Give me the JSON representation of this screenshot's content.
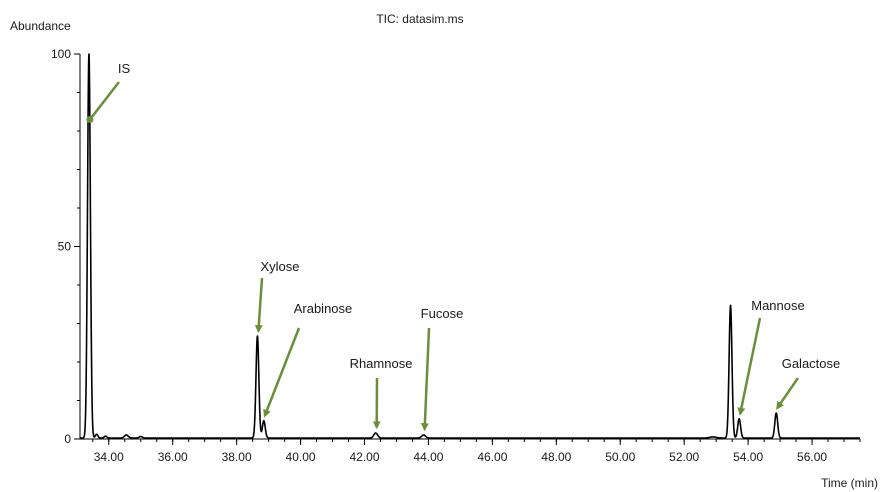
{
  "chart_data": {
    "type": "line",
    "title": "TIC: datasim.ms",
    "ylabel": "Abundance",
    "xlabel": "Time (min)",
    "xlim": [
      33.1,
      57.5
    ],
    "ylim": [
      0,
      100
    ],
    "xticks": [
      34.0,
      36.0,
      38.0,
      40.0,
      42.0,
      44.0,
      46.0,
      48.0,
      50.0,
      52.0,
      54.0,
      56.0
    ],
    "xtick_labels": [
      "34.00",
      "36.00",
      "38.00",
      "40.00",
      "42.00",
      "44.00",
      "46.00",
      "48.00",
      "50.00",
      "52.00",
      "54.00",
      "56.00"
    ],
    "yticks": [
      0,
      50,
      100
    ],
    "ytick_labels": [
      "0",
      "50",
      "100"
    ],
    "grid": false,
    "line_color": "#000000",
    "annotation_color": "#6a8e3a",
    "baseline": 0.25,
    "peaks": [
      {
        "x": 33.38,
        "height": 100,
        "width": 0.045
      },
      {
        "x": 33.62,
        "height": 1.0,
        "width": 0.04
      },
      {
        "x": 33.9,
        "height": 0.5,
        "width": 0.04
      },
      {
        "x": 34.55,
        "height": 0.8,
        "width": 0.06
      },
      {
        "x": 35.0,
        "height": 0.4,
        "width": 0.05
      },
      {
        "x": 38.65,
        "height": 26.5,
        "width": 0.045
      },
      {
        "x": 38.85,
        "height": 4.5,
        "width": 0.045
      },
      {
        "x": 42.35,
        "height": 1.3,
        "width": 0.06
      },
      {
        "x": 43.85,
        "height": 0.8,
        "width": 0.06
      },
      {
        "x": 52.9,
        "height": 0.3,
        "width": 0.1
      },
      {
        "x": 53.45,
        "height": 34.5,
        "width": 0.045
      },
      {
        "x": 53.72,
        "height": 5.0,
        "width": 0.045
      },
      {
        "x": 54.88,
        "height": 6.5,
        "width": 0.045
      }
    ],
    "annotations": [
      {
        "label": "IS",
        "x": 33.38,
        "y": 83,
        "style": "dot"
      },
      {
        "label": "Xylose",
        "x": 38.65,
        "y": 27,
        "style": "arrow"
      },
      {
        "label": "Arabinose",
        "x": 38.85,
        "y": 5,
        "style": "arrow"
      },
      {
        "label": "Rhamnose",
        "x": 42.35,
        "y": 2,
        "style": "arrow"
      },
      {
        "label": "Fucose",
        "x": 43.85,
        "y": 1.5,
        "style": "arrow"
      },
      {
        "label": "Mannose",
        "x": 53.72,
        "y": 5.5,
        "style": "arrow"
      },
      {
        "label": "Galactose",
        "x": 54.88,
        "y": 7,
        "style": "arrow"
      }
    ]
  }
}
